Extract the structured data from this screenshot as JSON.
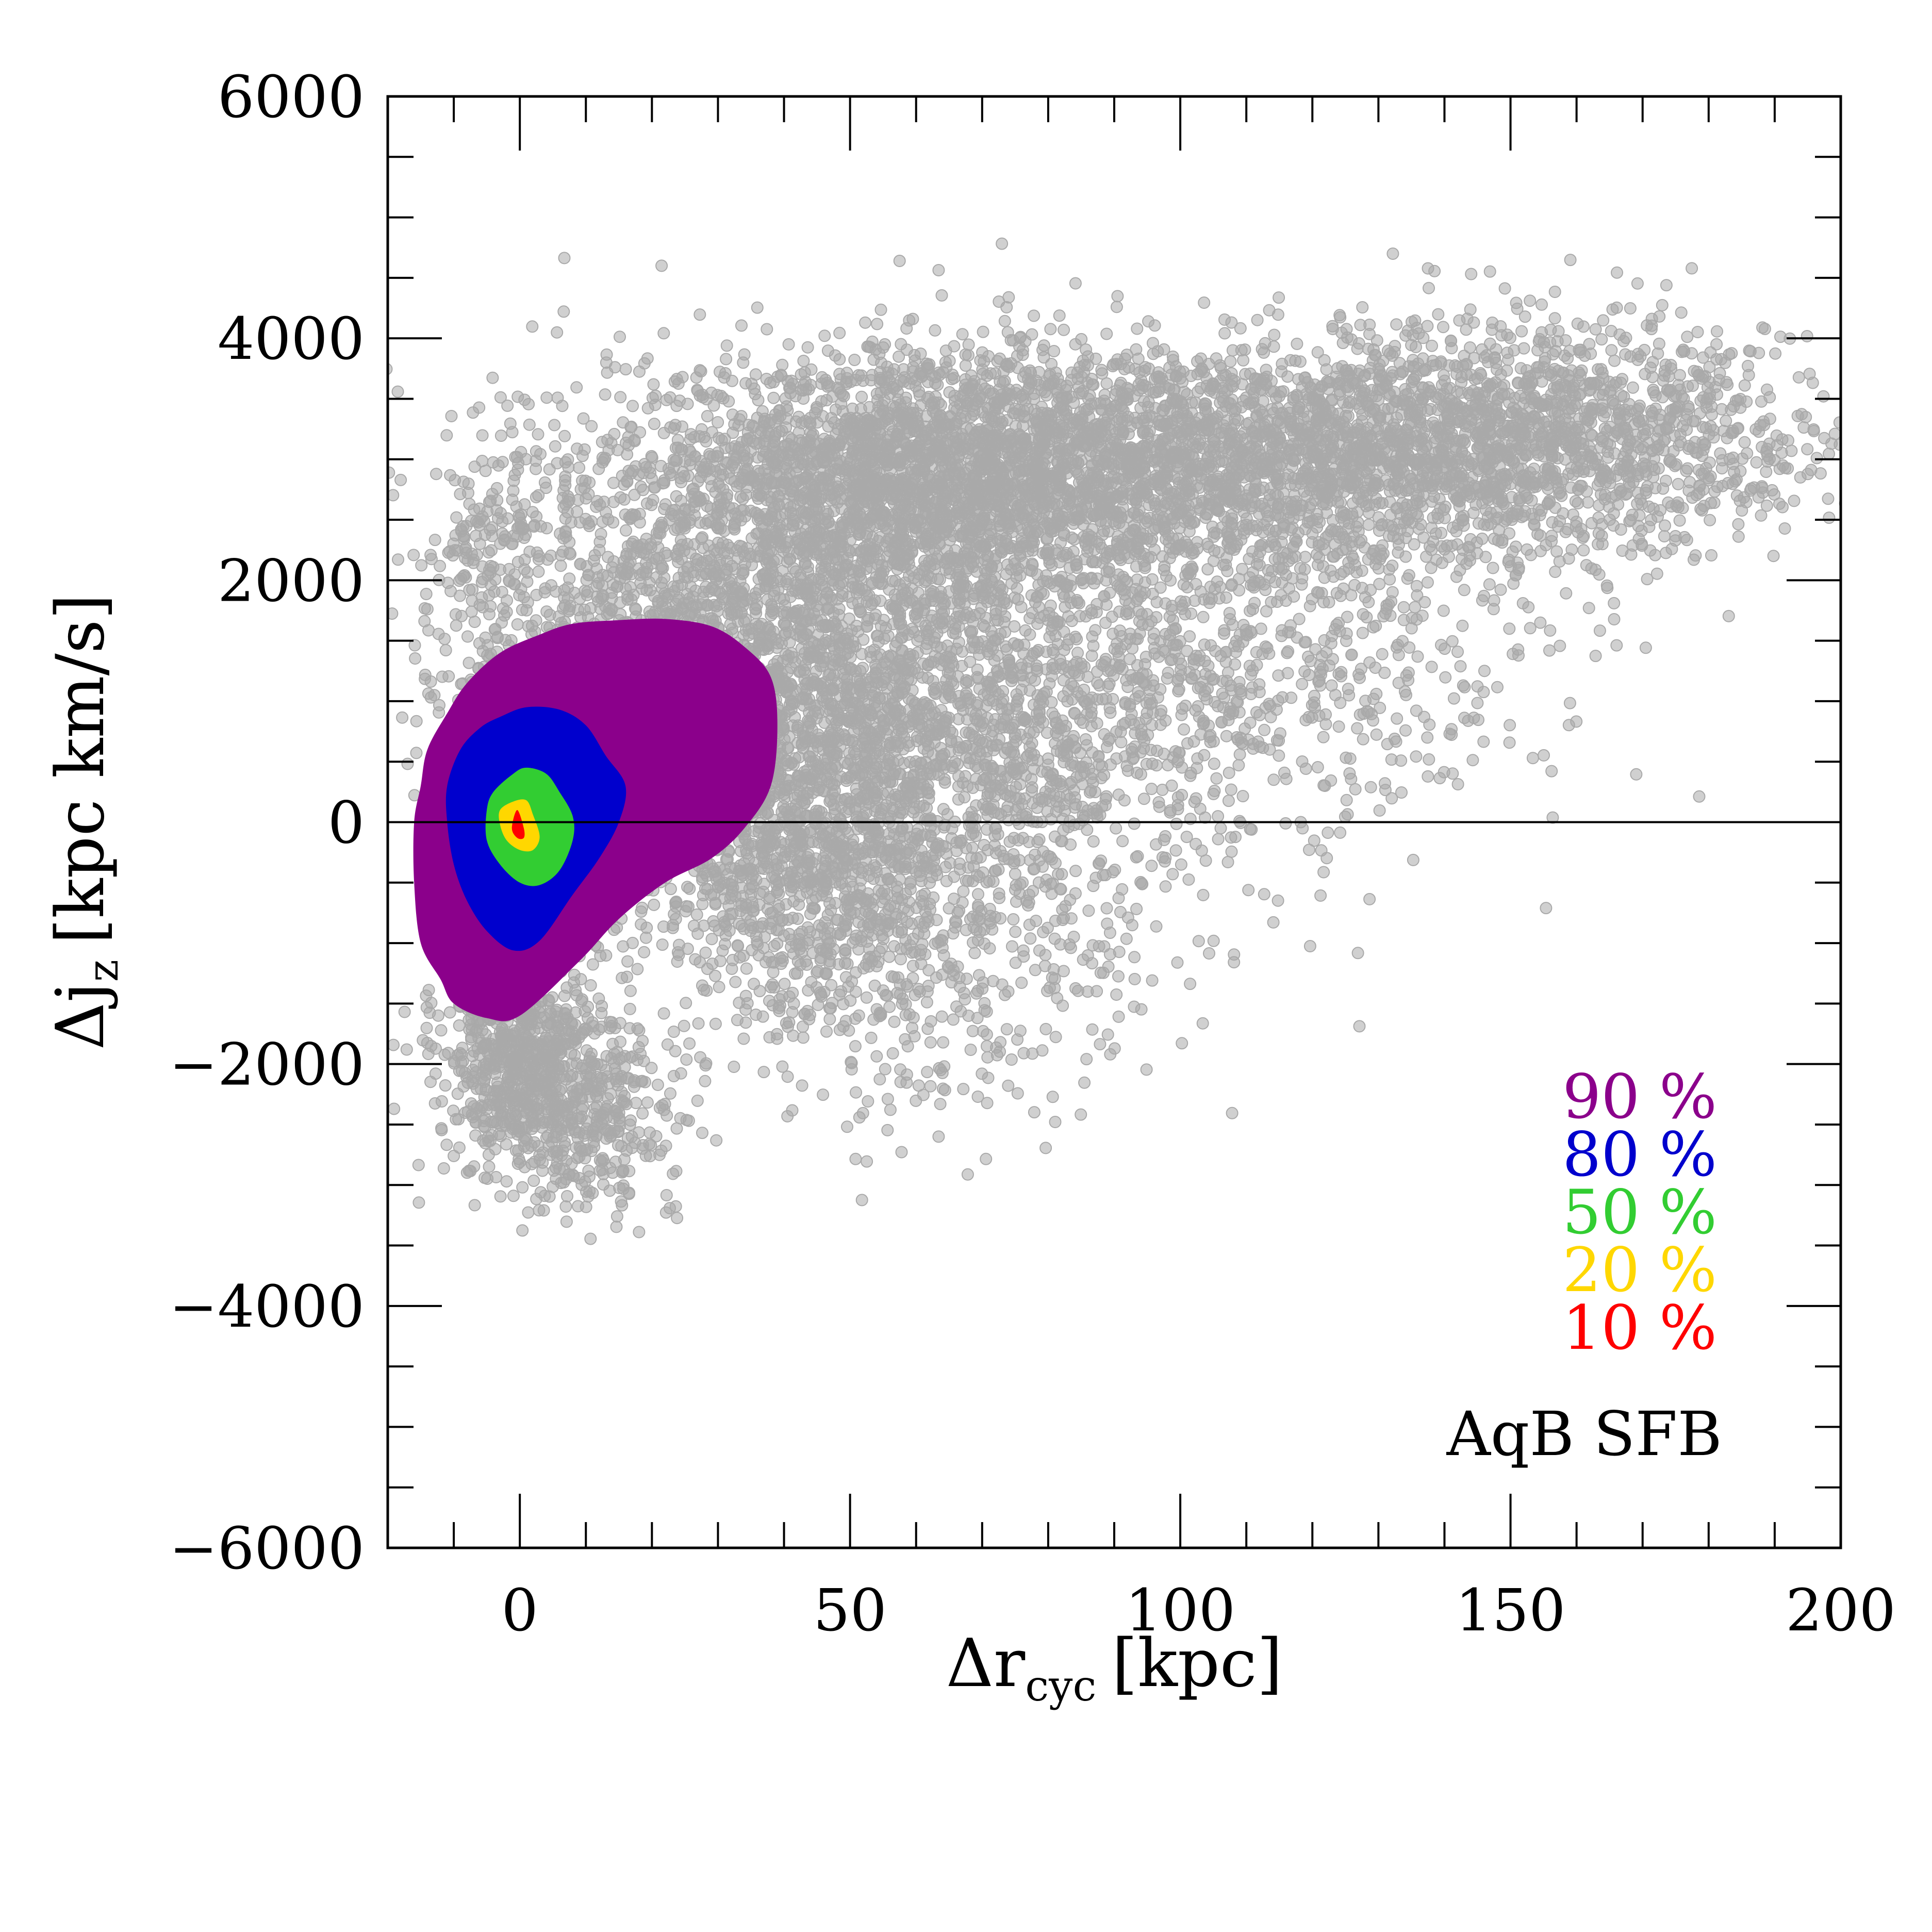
{
  "chart_data": {
    "type": "scatter",
    "xlabel": "Δr",
    "xlabel_sub": "cyc",
    "xlabel_unit": "[kpc]",
    "ylabel": "Δj",
    "ylabel_sub": "z",
    "ylabel_unit": "[kpc km/s]",
    "xlim": [
      -20,
      200
    ],
    "ylim": [
      -6000,
      6000
    ],
    "xticks": [
      0,
      50,
      100,
      150,
      200
    ],
    "xtick_labels": [
      "0",
      "50",
      "100",
      "150",
      "200"
    ],
    "yticks": [
      -6000,
      -4000,
      -2000,
      0,
      2000,
      4000,
      6000
    ],
    "ytick_labels": [
      "−6000",
      "−4000",
      "−2000",
      "0",
      "2000",
      "4000",
      "6000"
    ],
    "x_minor_step": 10,
    "y_minor_step": 500,
    "reference_line_y": 0,
    "grid": false,
    "points_color": "#a9a9a9",
    "annotation": "AqB SFB",
    "legend_position": "bottom-right",
    "contours": [
      {
        "level": "90",
        "color": "#8b008b",
        "x": [
          -11,
          -8,
          -3,
          3,
          8,
          15,
          22,
          29,
          34,
          38,
          39,
          38,
          34,
          29,
          22,
          15,
          9,
          0,
          -5,
          -10,
          -12,
          -15,
          -16,
          -16,
          -15,
          -14
        ],
        "y": [
          900,
          1150,
          1400,
          1550,
          1640,
          1670,
          1680,
          1620,
          1450,
          1200,
          800,
          300,
          -50,
          -300,
          -500,
          -800,
          -1150,
          -1600,
          -1620,
          -1500,
          -1300,
          -1000,
          -500,
          0,
          300,
          600
        ]
      },
      {
        "level": "80",
        "color": "#0000cd",
        "x": [
          -9,
          -6,
          -3,
          1,
          6,
          10,
          13,
          16,
          15,
          12,
          8,
          3,
          -1,
          -5,
          -8,
          -10,
          -11,
          -11
        ],
        "y": [
          600,
          780,
          870,
          950,
          930,
          800,
          550,
          300,
          0,
          -300,
          -600,
          -980,
          -1060,
          -900,
          -650,
          -350,
          0,
          300
        ]
      },
      {
        "level": "50",
        "color": "#32cd32",
        "x": [
          -4,
          -1,
          1,
          4,
          6,
          8,
          8,
          6,
          3,
          0,
          -3,
          -5,
          -5
        ],
        "y": [
          250,
          400,
          450,
          400,
          250,
          50,
          -150,
          -400,
          -520,
          -500,
          -350,
          -150,
          100
        ]
      },
      {
        "level": "20",
        "color": "#ffd700",
        "x": [
          -3,
          -1,
          1,
          2,
          3,
          2,
          0,
          -2,
          -3
        ],
        "y": [
          100,
          170,
          180,
          60,
          -120,
          -230,
          -230,
          -150,
          -20
        ]
      },
      {
        "level": "10",
        "color": "#ff0000",
        "x": [
          -1.2,
          -0.4,
          0.6,
          0.6,
          -0.4
        ],
        "y": [
          -50,
          100,
          -50,
          -130,
          -130
        ]
      }
    ],
    "legend": [
      {
        "label": "90 %",
        "color": "#8b008b"
      },
      {
        "label": "80 %",
        "color": "#0000cd"
      },
      {
        "label": "50 %",
        "color": "#32cd32"
      },
      {
        "label": "20 %",
        "color": "#ffd700"
      },
      {
        "label": "10 %",
        "color": "#ff0000"
      }
    ],
    "point_clusters": [
      {
        "cx": 100,
        "cy": 3000,
        "sx": 40,
        "sy": 450,
        "n": 3200
      },
      {
        "cx": 150,
        "cy": 3200,
        "sx": 20,
        "sy": 500,
        "n": 900
      },
      {
        "cx": 60,
        "cy": 2800,
        "sx": 18,
        "sy": 600,
        "n": 1600
      },
      {
        "cx": 30,
        "cy": 1200,
        "sx": 20,
        "sy": 900,
        "n": 2600
      },
      {
        "cx": 70,
        "cy": 700,
        "sx": 20,
        "sy": 900,
        "n": 1500
      },
      {
        "cx": 45,
        "cy": -400,
        "sx": 14,
        "sy": 600,
        "n": 900
      },
      {
        "cx": 0,
        "cy": -1900,
        "sx": 6,
        "sy": 450,
        "n": 700
      },
      {
        "cx": 10,
        "cy": -2400,
        "sx": 8,
        "sy": 400,
        "n": 400
      },
      {
        "cx": 110,
        "cy": 1400,
        "sx": 22,
        "sy": 800,
        "n": 700
      },
      {
        "cx": 170,
        "cy": 3200,
        "sx": 15,
        "sy": 500,
        "n": 250
      },
      {
        "cx": -5,
        "cy": 2200,
        "sx": 4,
        "sy": 500,
        "n": 120
      },
      {
        "cx": 60,
        "cy": -1500,
        "sx": 20,
        "sy": 600,
        "n": 250
      }
    ]
  }
}
